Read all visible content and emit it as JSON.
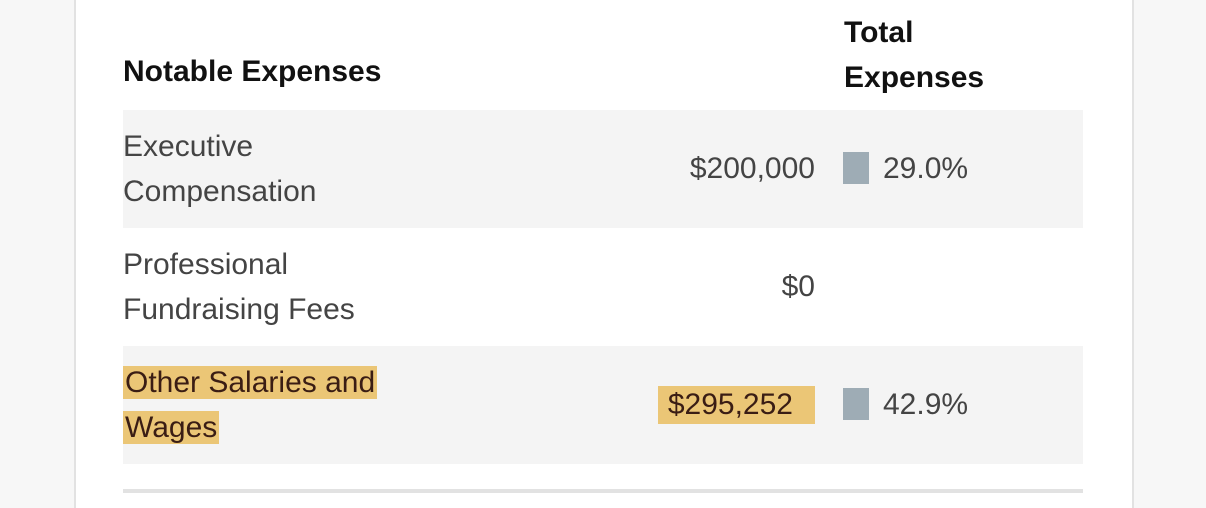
{
  "headers": {
    "name": "Notable Expenses",
    "total_line1": "Total",
    "total_line2": "Expenses"
  },
  "rows": [
    {
      "label_line1": "Executive",
      "label_line2": "Compensation",
      "amount": "$200,000",
      "percent": "29.0%"
    },
    {
      "label_line1": "Professional",
      "label_line2": "Fundraising Fees",
      "amount": "$0",
      "percent": ""
    },
    {
      "label_line1": "Other Salaries and",
      "label_line2": "Wages",
      "amount": "$295,252",
      "percent": "42.9%"
    }
  ],
  "colors": {
    "highlight": "#ebc676",
    "bar": "#9eacb5",
    "row_alt": "#f4f4f4"
  }
}
